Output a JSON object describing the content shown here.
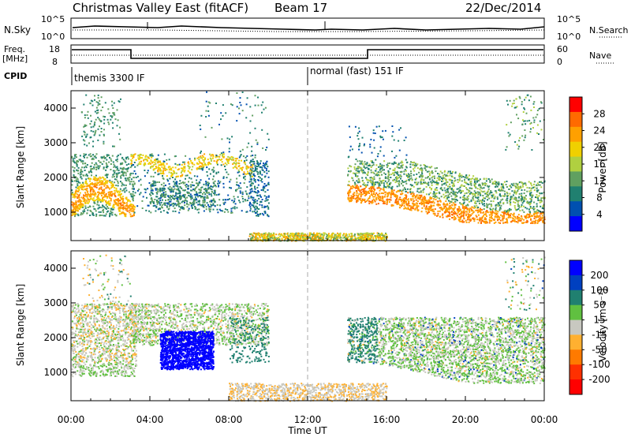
{
  "header": {
    "title": "Christmas Valley East (fitACF)",
    "beam": "Beam 17",
    "date": "22/Dec/2014"
  },
  "top_panels": {
    "nsky": {
      "label": "N.Sky",
      "left_ticks": [
        "10^5",
        "10^0"
      ],
      "right_ticks": [
        "10^5",
        "10^0"
      ],
      "legend": "N.Search"
    },
    "freq": {
      "label_line1": "Freq.",
      "label_line2": "[MHz]",
      "left_ticks": [
        "18",
        "8"
      ],
      "right_ticks": [
        "60",
        "0"
      ],
      "legend": "Nave"
    },
    "cpid": {
      "label": "CPID",
      "mode1": "themis 3300 IF",
      "mode2": "normal (fast) 151 IF"
    }
  },
  "axes": {
    "y_label": "Slant Range [km]",
    "x_label": "Time UT",
    "x_ticks": [
      "00:00",
      "04:00",
      "08:00",
      "12:00",
      "16:00",
      "20:00",
      "00:00"
    ],
    "y_ticks": [
      "4000",
      "3000",
      "2000",
      "1000"
    ]
  },
  "colorbars": {
    "power": {
      "label": "Power [dB]",
      "ticks": [
        "28",
        "24",
        "20",
        "16",
        "12",
        "8",
        "4"
      ],
      "colors": [
        "#ff0000",
        "#ff6a00",
        "#ffa000",
        "#f0d000",
        "#b0d040",
        "#60a060",
        "#208070",
        "#0050b0",
        "#0000ff"
      ]
    },
    "velocity": {
      "label": "Velocity [m s⁻¹]",
      "ticks": [
        "200",
        "100",
        "50",
        "15",
        "-15",
        "-50",
        "-100",
        "-200"
      ],
      "colors": [
        "#0000ff",
        "#0040c0",
        "#208070",
        "#60c040",
        "#c8c8c0",
        "#ffb030",
        "#ff7a00",
        "#ff3000",
        "#ff0000"
      ]
    }
  },
  "chart_data": [
    {
      "type": "heatmap",
      "title": "Power [dB]",
      "xlabel": "Time UT",
      "ylabel": "Slant Range [km]",
      "xlim": [
        0,
        24
      ],
      "ylim": [
        180,
        4500
      ],
      "scatter_regions": [
        {
          "x": [
            0,
            3
          ],
          "y": [
            900,
            2700
          ],
          "value": 26
        },
        {
          "x": [
            3,
            9
          ],
          "y": [
            1000,
            2600
          ],
          "value": 18
        },
        {
          "x": [
            9,
            10
          ],
          "y": [
            900,
            2400
          ],
          "value": 10
        },
        {
          "x": [
            14,
            24
          ],
          "y": [
            700,
            2400
          ],
          "value": 24
        }
      ]
    },
    {
      "type": "heatmap",
      "title": "Velocity [m s⁻¹]",
      "xlabel": "Time UT",
      "ylabel": "Slant Range [km]",
      "xlim": [
        0,
        24
      ],
      "ylim": [
        180,
        4500
      ],
      "scatter_regions": [
        {
          "x": [
            0,
            3
          ],
          "y": [
            900,
            3000
          ],
          "value": -30
        },
        {
          "x": [
            4.5,
            7
          ],
          "y": [
            1100,
            2200
          ],
          "value": 200
        },
        {
          "x": [
            3,
            10
          ],
          "y": [
            1800,
            3000
          ],
          "value": 0
        },
        {
          "x": [
            14,
            24
          ],
          "y": [
            700,
            2500
          ],
          "value": 0
        }
      ]
    }
  ]
}
